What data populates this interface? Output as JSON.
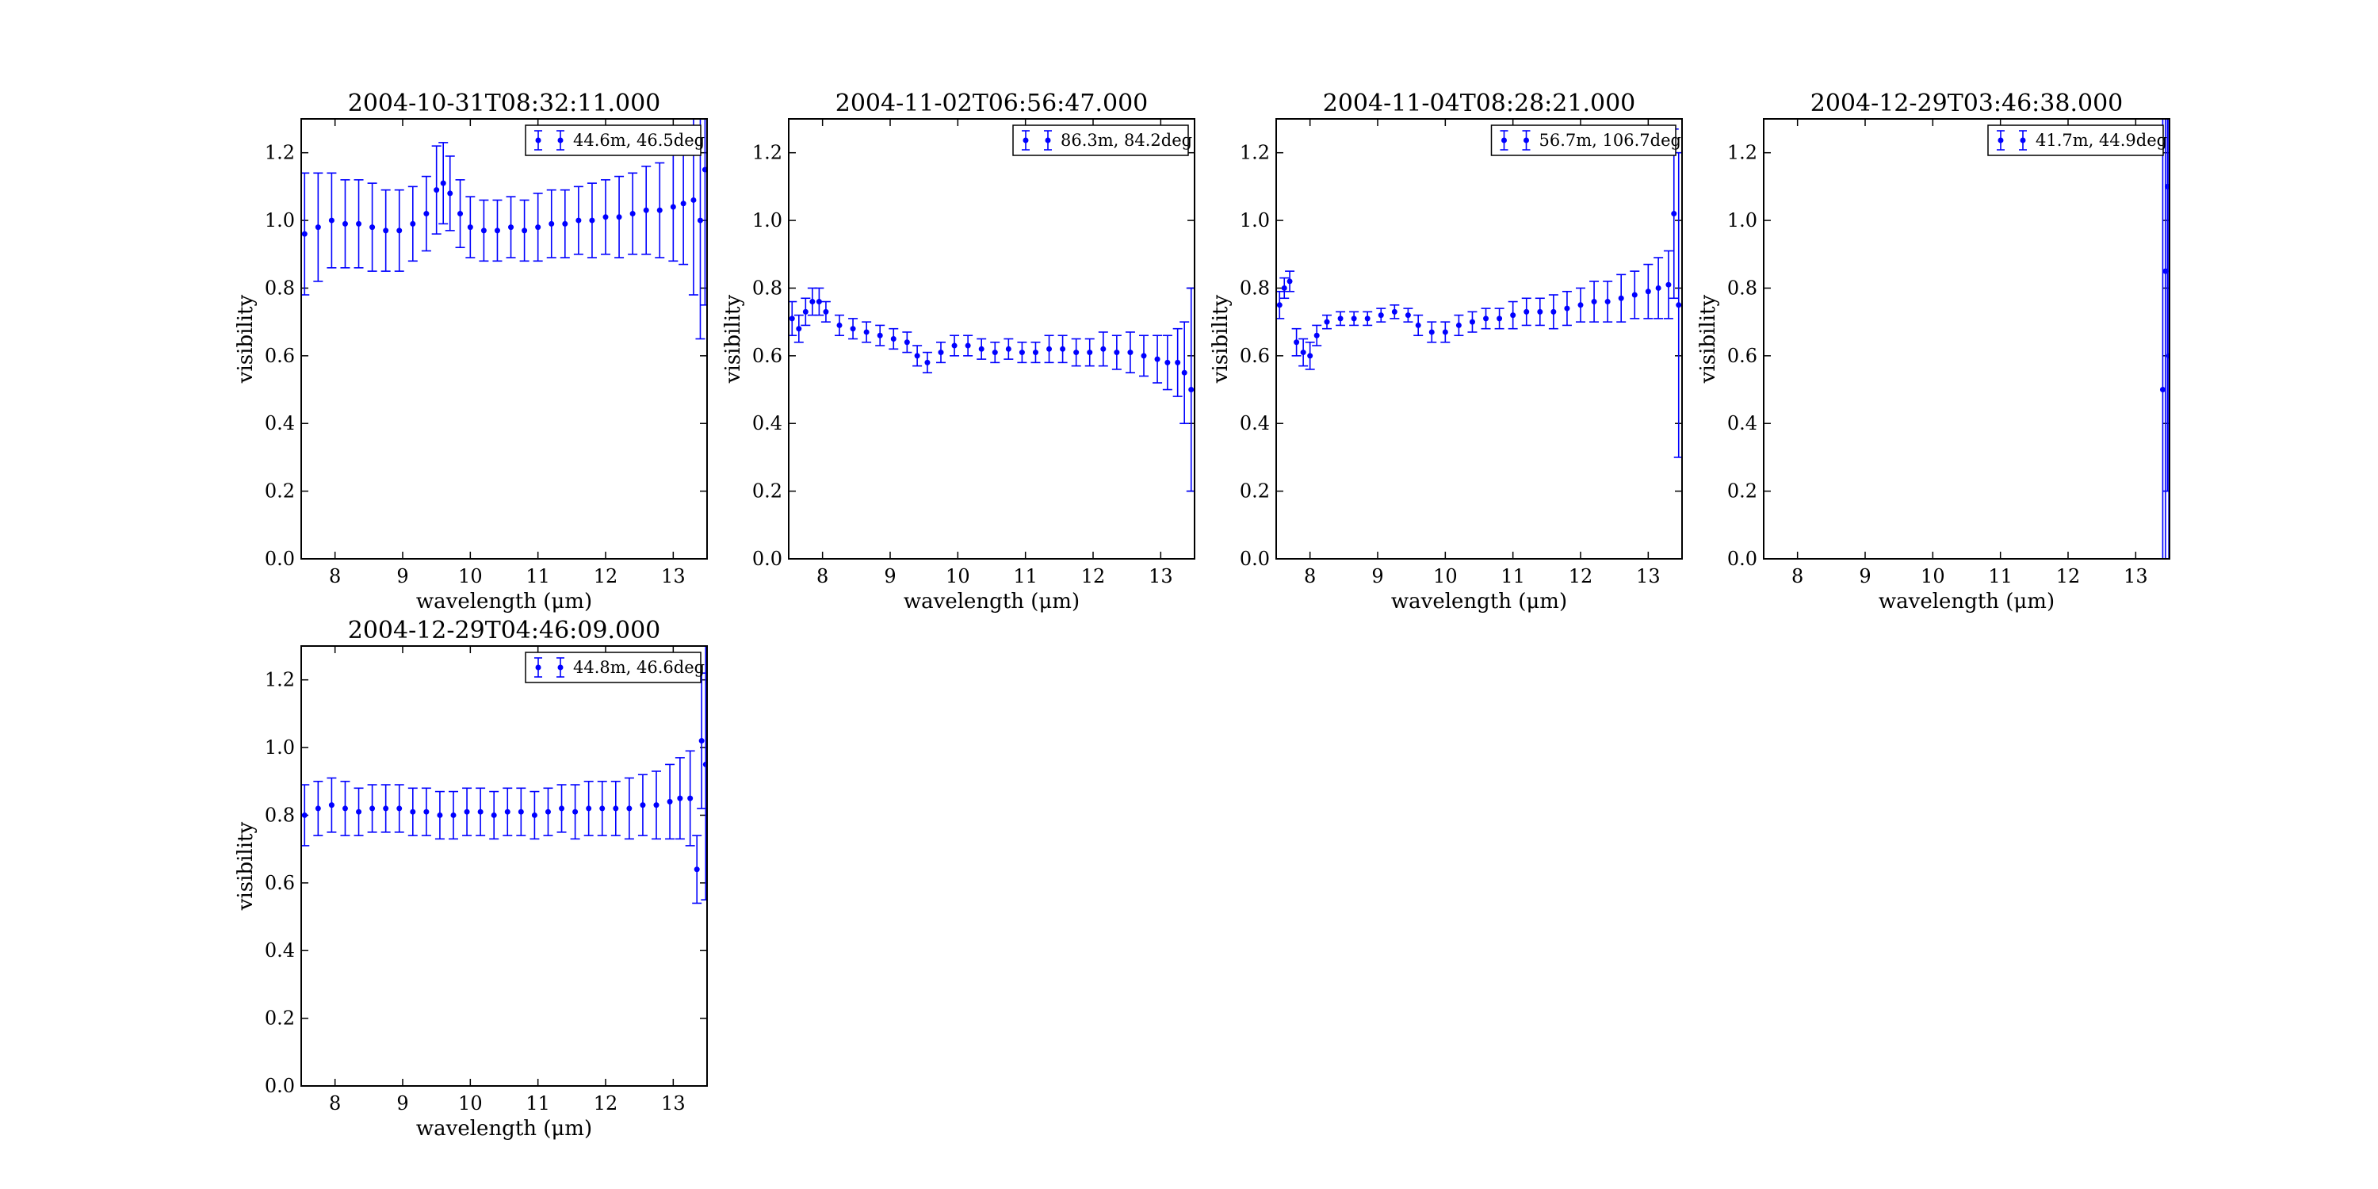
{
  "figure": {
    "background": "#ffffff",
    "series_color": "#0000ff"
  },
  "chart_data": [
    {
      "type": "scatter",
      "title": "2004-10-31T08:32:11.000",
      "xlabel": "wavelength (μm)",
      "ylabel": "visibility",
      "xlim": [
        7.5,
        13.5
      ],
      "ylim": [
        0.0,
        1.3
      ],
      "xticks": [
        "8",
        "9",
        "10",
        "11",
        "12",
        "13"
      ],
      "yticks": [
        "0.0",
        "0.2",
        "0.4",
        "0.6",
        "0.8",
        "1.0",
        "1.2"
      ],
      "legend": {
        "label": "44.6m, 46.5deg",
        "position": "upper right"
      },
      "series": [
        {
          "name": "44.6m, 46.5deg",
          "x": [
            7.55,
            7.75,
            7.95,
            8.15,
            8.35,
            8.55,
            8.75,
            8.95,
            9.15,
            9.35,
            9.5,
            9.6,
            9.7,
            9.85,
            10.0,
            10.2,
            10.4,
            10.6,
            10.8,
            11.0,
            11.2,
            11.4,
            11.6,
            11.8,
            12.0,
            12.2,
            12.4,
            12.6,
            12.8,
            13.0,
            13.15,
            13.3,
            13.4,
            13.47
          ],
          "y": [
            0.96,
            0.98,
            1.0,
            0.99,
            0.99,
            0.98,
            0.97,
            0.97,
            0.99,
            1.02,
            1.09,
            1.11,
            1.08,
            1.02,
            0.98,
            0.97,
            0.97,
            0.98,
            0.97,
            0.98,
            0.99,
            0.99,
            1.0,
            1.0,
            1.01,
            1.01,
            1.02,
            1.03,
            1.03,
            1.04,
            1.05,
            1.06,
            1.0,
            1.15
          ],
          "err": [
            0.18,
            0.16,
            0.14,
            0.13,
            0.13,
            0.13,
            0.12,
            0.12,
            0.11,
            0.11,
            0.13,
            0.12,
            0.11,
            0.1,
            0.09,
            0.09,
            0.09,
            0.09,
            0.09,
            0.1,
            0.1,
            0.1,
            0.1,
            0.11,
            0.11,
            0.12,
            0.12,
            0.13,
            0.14,
            0.16,
            0.18,
            0.28,
            0.35,
            0.4
          ]
        }
      ]
    },
    {
      "type": "scatter",
      "title": "2004-11-02T06:56:47.000",
      "xlabel": "wavelength (μm)",
      "ylabel": "visibility",
      "xlim": [
        7.5,
        13.5
      ],
      "ylim": [
        0.0,
        1.3
      ],
      "xticks": [
        "8",
        "9",
        "10",
        "11",
        "12",
        "13"
      ],
      "yticks": [
        "0.0",
        "0.2",
        "0.4",
        "0.6",
        "0.8",
        "1.0",
        "1.2"
      ],
      "legend": {
        "label": "86.3m, 84.2deg",
        "position": "upper right"
      },
      "series": [
        {
          "name": "86.3m, 84.2deg",
          "x": [
            7.55,
            7.65,
            7.75,
            7.85,
            7.95,
            8.05,
            8.25,
            8.45,
            8.65,
            8.85,
            9.05,
            9.25,
            9.4,
            9.55,
            9.75,
            9.95,
            10.15,
            10.35,
            10.55,
            10.75,
            10.95,
            11.15,
            11.35,
            11.55,
            11.75,
            11.95,
            12.15,
            12.35,
            12.55,
            12.75,
            12.95,
            13.1,
            13.25,
            13.35,
            13.45
          ],
          "y": [
            0.71,
            0.68,
            0.73,
            0.76,
            0.76,
            0.73,
            0.69,
            0.68,
            0.67,
            0.66,
            0.65,
            0.64,
            0.6,
            0.58,
            0.61,
            0.63,
            0.63,
            0.62,
            0.61,
            0.62,
            0.61,
            0.61,
            0.62,
            0.62,
            0.61,
            0.61,
            0.62,
            0.61,
            0.61,
            0.6,
            0.59,
            0.58,
            0.58,
            0.55,
            0.5
          ],
          "err": [
            0.05,
            0.04,
            0.04,
            0.04,
            0.04,
            0.03,
            0.03,
            0.03,
            0.03,
            0.03,
            0.03,
            0.03,
            0.03,
            0.03,
            0.03,
            0.03,
            0.03,
            0.03,
            0.03,
            0.03,
            0.03,
            0.03,
            0.04,
            0.04,
            0.04,
            0.04,
            0.05,
            0.05,
            0.06,
            0.06,
            0.07,
            0.08,
            0.1,
            0.15,
            0.3
          ]
        }
      ]
    },
    {
      "type": "scatter",
      "title": "2004-11-04T08:28:21.000",
      "xlabel": "wavelength (μm)",
      "ylabel": "visibility",
      "xlim": [
        7.5,
        13.5
      ],
      "ylim": [
        0.0,
        1.3
      ],
      "xticks": [
        "8",
        "9",
        "10",
        "11",
        "12",
        "13"
      ],
      "yticks": [
        "0.0",
        "0.2",
        "0.4",
        "0.6",
        "0.8",
        "1.0",
        "1.2"
      ],
      "legend": {
        "label": "56.7m, 106.7deg",
        "position": "upper right"
      },
      "series": [
        {
          "name": "56.7m, 106.7deg",
          "x": [
            7.55,
            7.62,
            7.7,
            7.8,
            7.9,
            8.0,
            8.1,
            8.25,
            8.45,
            8.65,
            8.85,
            9.05,
            9.25,
            9.45,
            9.6,
            9.8,
            10.0,
            10.2,
            10.4,
            10.6,
            10.8,
            11.0,
            11.2,
            11.4,
            11.6,
            11.8,
            12.0,
            12.2,
            12.4,
            12.6,
            12.8,
            13.0,
            13.15,
            13.3,
            13.38,
            13.45
          ],
          "y": [
            0.75,
            0.8,
            0.82,
            0.64,
            0.61,
            0.6,
            0.66,
            0.7,
            0.71,
            0.71,
            0.71,
            0.72,
            0.73,
            0.72,
            0.69,
            0.67,
            0.67,
            0.69,
            0.7,
            0.71,
            0.71,
            0.72,
            0.73,
            0.73,
            0.73,
            0.74,
            0.75,
            0.76,
            0.76,
            0.77,
            0.78,
            0.79,
            0.8,
            0.81,
            1.02,
            0.75
          ],
          "err": [
            0.04,
            0.03,
            0.03,
            0.04,
            0.04,
            0.04,
            0.03,
            0.02,
            0.02,
            0.02,
            0.02,
            0.02,
            0.02,
            0.02,
            0.03,
            0.03,
            0.03,
            0.03,
            0.03,
            0.03,
            0.03,
            0.04,
            0.04,
            0.04,
            0.05,
            0.05,
            0.05,
            0.06,
            0.06,
            0.07,
            0.07,
            0.08,
            0.09,
            0.1,
            0.25,
            0.45
          ]
        }
      ]
    },
    {
      "type": "scatter",
      "title": "2004-12-29T03:46:38.000",
      "xlabel": "wavelength (μm)",
      "ylabel": "visibility",
      "xlim": [
        7.5,
        13.5
      ],
      "ylim": [
        0.0,
        1.3
      ],
      "xticks": [
        "8",
        "9",
        "10",
        "11",
        "12",
        "13"
      ],
      "yticks": [
        "0.0",
        "0.2",
        "0.4",
        "0.6",
        "0.8",
        "1.0",
        "1.2"
      ],
      "legend": {
        "label": "41.7m, 44.9deg",
        "position": "upper right"
      },
      "series": [
        {
          "name": "41.7m, 44.9deg",
          "x": [
            13.4,
            13.44,
            13.47,
            13.49
          ],
          "y": [
            0.5,
            0.85,
            1.1,
            0.6
          ],
          "err": [
            0.9,
            0.9,
            0.9,
            0.9
          ]
        }
      ]
    },
    {
      "type": "scatter",
      "title": "2004-12-29T04:46:09.000",
      "xlabel": "wavelength (μm)",
      "ylabel": "visibility",
      "xlim": [
        7.5,
        13.5
      ],
      "ylim": [
        0.0,
        1.3
      ],
      "xticks": [
        "8",
        "9",
        "10",
        "11",
        "12",
        "13"
      ],
      "yticks": [
        "0.0",
        "0.2",
        "0.4",
        "0.6",
        "0.8",
        "1.0",
        "1.2"
      ],
      "legend": {
        "label": "44.8m, 46.6deg",
        "position": "upper right"
      },
      "series": [
        {
          "name": "44.8m, 46.6deg",
          "x": [
            7.55,
            7.75,
            7.95,
            8.15,
            8.35,
            8.55,
            8.75,
            8.95,
            9.15,
            9.35,
            9.55,
            9.75,
            9.95,
            10.15,
            10.35,
            10.55,
            10.75,
            10.95,
            11.15,
            11.35,
            11.55,
            11.75,
            11.95,
            12.15,
            12.35,
            12.55,
            12.75,
            12.95,
            13.1,
            13.25,
            13.35,
            13.42,
            13.48
          ],
          "y": [
            0.8,
            0.82,
            0.83,
            0.82,
            0.81,
            0.82,
            0.82,
            0.82,
            0.81,
            0.81,
            0.8,
            0.8,
            0.81,
            0.81,
            0.8,
            0.81,
            0.81,
            0.8,
            0.81,
            0.82,
            0.81,
            0.82,
            0.82,
            0.82,
            0.82,
            0.83,
            0.83,
            0.84,
            0.85,
            0.85,
            0.64,
            1.02,
            0.95
          ],
          "err": [
            0.09,
            0.08,
            0.08,
            0.08,
            0.07,
            0.07,
            0.07,
            0.07,
            0.07,
            0.07,
            0.07,
            0.07,
            0.07,
            0.07,
            0.07,
            0.07,
            0.07,
            0.07,
            0.07,
            0.07,
            0.08,
            0.08,
            0.08,
            0.08,
            0.09,
            0.09,
            0.1,
            0.11,
            0.12,
            0.14,
            0.1,
            0.2,
            0.4
          ]
        }
      ]
    }
  ]
}
